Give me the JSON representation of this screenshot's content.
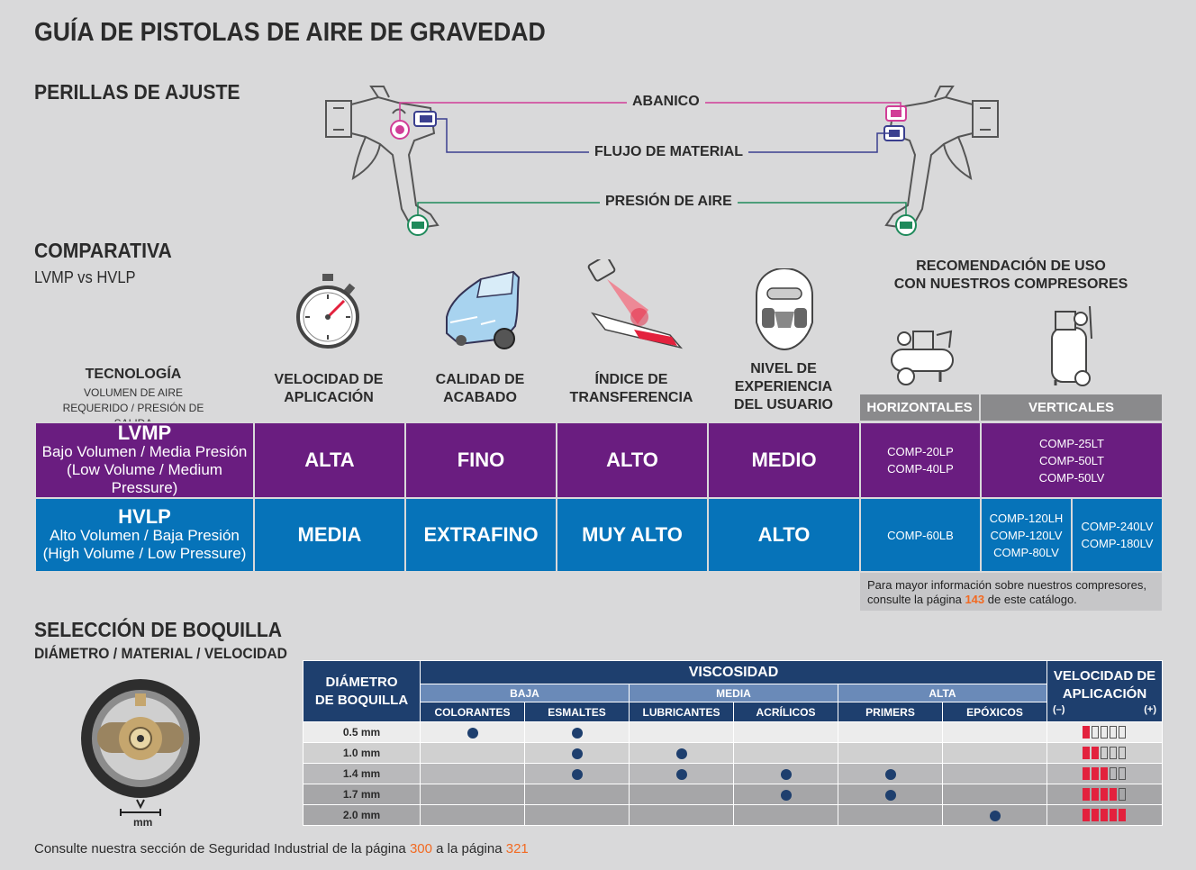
{
  "title": "GUÍA DE PISTOLAS DE AIRE DE GRAVEDAD",
  "knobs": {
    "heading": "PERILLAS DE AJUSTE",
    "labels": [
      "ABANICO",
      "FLUJO DE MATERIAL",
      "PRESIÓN DE AIRE"
    ],
    "colors": {
      "abanico": "#d13d97",
      "flujo": "#3a3f8f",
      "presion": "#1f8a5b"
    }
  },
  "comparison": {
    "heading": "COMPARATIVA",
    "subheading": "LVMP vs HVLP",
    "tech_header": "TECNOLOGÍA",
    "tech_sub": "VOLUMEN DE AIRE REQUERIDO / PRESIÓN DE SALIDA",
    "columns": [
      "VELOCIDAD DE APLICACIÓN",
      "CALIDAD DE ACABADO",
      "ÍNDICE DE TRANSFERENCIA",
      "NIVEL DE EXPERIENCIA DEL USUARIO"
    ],
    "columns_lines": [
      [
        "VELOCIDAD DE",
        "APLICACIÓN"
      ],
      [
        "CALIDAD DE",
        "ACABADO"
      ],
      [
        "ÍNDICE DE",
        "TRANSFERENCIA"
      ],
      [
        "NIVEL DE",
        "EXPERIENCIA",
        "DEL USUARIO"
      ]
    ],
    "recommendation": "RECOMENDACIÓN DE USO CON NUESTROS COMPRESORES",
    "recommendation_lines": [
      "RECOMENDACIÓN DE USO",
      "CON NUESTROS COMPRESORES"
    ],
    "horizontal": "HORIZONTALES",
    "vertical": "VERTICALES",
    "rows": [
      {
        "name": "LVMP",
        "desc1": "Bajo Volumen / Media Presión",
        "desc2": "(Low Volume / Medium Pressure)",
        "values": [
          "ALTA",
          "FINO",
          "ALTO",
          "MEDIO"
        ],
        "horizontal_models": [
          "COMP-20LP",
          "COMP-40LP"
        ],
        "vertical_models": [
          "COMP-25LT",
          "COMP-50LT",
          "COMP-50LV"
        ]
      },
      {
        "name": "HVLP",
        "desc1": "Alto Volumen / Baja Presión",
        "desc2": "(High Volume / Low Pressure)",
        "values": [
          "MEDIA",
          "EXTRAFINO",
          "MUY ALTO",
          "ALTO"
        ],
        "horizontal_models": [
          "COMP-60LB"
        ],
        "vertical_models_a": [
          "COMP-120LH",
          "COMP-120LV",
          "COMP-80LV"
        ],
        "vertical_models_b": [
          "COMP-240LV",
          "COMP-180LV"
        ]
      }
    ],
    "colors": {
      "lvmp": "#6a1d80",
      "hvlp": "#0673b9"
    },
    "note_line1": "Para mayor información sobre nuestros compresores,",
    "note_line2a": "consulte la página",
    "note_page": "143",
    "note_line2b": "de este catálogo."
  },
  "nozzle": {
    "heading": "SELECCIÓN DE BOQUILLA",
    "subheading": "DIÁMETRO / MATERIAL / VELOCIDAD",
    "mm_label": "mm",
    "diam_header_lines": [
      "DIÁMETRO",
      "DE BOQUILLA"
    ],
    "viscosity": "VISCOSIDAD",
    "speed_header_lines": [
      "VELOCIDAD DE",
      "APLICACIÓN"
    ],
    "minus": "(–)",
    "plus": "(+)",
    "groups": [
      "BAJA",
      "MEDIA",
      "ALTA"
    ],
    "materials": [
      "COLORANTES",
      "ESMALTES",
      "LUBRICANTES",
      "ACRÍLICOS",
      "PRIMERS",
      "EPÓXICOS"
    ],
    "rows": [
      {
        "size": "0.5 mm",
        "dots": [
          1,
          1,
          0,
          0,
          0,
          0
        ],
        "speed": 1
      },
      {
        "size": "1.0 mm",
        "dots": [
          0,
          1,
          1,
          0,
          0,
          0
        ],
        "speed": 2
      },
      {
        "size": "1.4 mm",
        "dots": [
          0,
          1,
          1,
          1,
          1,
          0
        ],
        "speed": 3
      },
      {
        "size": "1.7 mm",
        "dots": [
          0,
          0,
          0,
          1,
          1,
          0
        ],
        "speed": 4
      },
      {
        "size": "2.0 mm",
        "dots": [
          0,
          0,
          0,
          0,
          0,
          1
        ],
        "speed": 5
      }
    ]
  },
  "footer": {
    "text_a": "Consulte nuestra sección de Seguridad Industrial de la página",
    "page_a": "300",
    "text_b": "a la página",
    "page_b": "321"
  }
}
